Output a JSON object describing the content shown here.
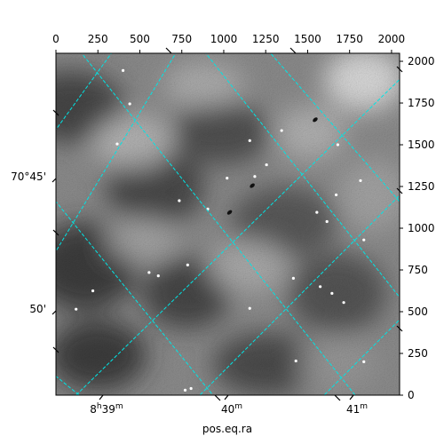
{
  "chart_data": {
    "type": "heatmap",
    "title": "",
    "xlabel": "pos.eq.ra",
    "ylabel": "",
    "pixel_x_axis": {
      "position": "top",
      "range": [
        0,
        2048
      ],
      "ticks": [
        0,
        250,
        500,
        750,
        1000,
        1250,
        1500,
        1750,
        2000
      ],
      "tick_labels": [
        "0",
        "250",
        "500",
        "750",
        "1000",
        "1250",
        "1500",
        "1750",
        "2000"
      ]
    },
    "pixel_y_axis": {
      "position": "right",
      "range": [
        0,
        2048
      ],
      "ticks": [
        0,
        250,
        500,
        750,
        1000,
        1250,
        1500,
        1750,
        2000
      ],
      "tick_labels": [
        "0",
        "250",
        "500",
        "750",
        "1000",
        "1250",
        "1500",
        "1750",
        "2000"
      ]
    },
    "ra_axis": {
      "position": "bottom",
      "tick_labels": [
        {
          "h": "8",
          "m": "39",
          "text": "8h39m"
        },
        {
          "h": "",
          "m": "40",
          "text": "40m"
        },
        {
          "h": "",
          "m": "41",
          "text": "41m"
        }
      ]
    },
    "dec_axis": {
      "position": "left",
      "tick_labels": [
        "70°45'",
        "50'"
      ]
    },
    "grid": true,
    "grid_style": "dashed",
    "grid_color": "#00e5e5",
    "colormap": "gray",
    "stars": [
      {
        "x": 1345,
        "y": 1585
      },
      {
        "x": 1020,
        "y": 1300
      },
      {
        "x": 1185,
        "y": 1310
      },
      {
        "x": 735,
        "y": 1165
      },
      {
        "x": 905,
        "y": 1115
      },
      {
        "x": 1670,
        "y": 1200
      },
      {
        "x": 1815,
        "y": 1285
      },
      {
        "x": 1255,
        "y": 1380
      },
      {
        "x": 1680,
        "y": 1500
      },
      {
        "x": 400,
        "y": 1945
      },
      {
        "x": 440,
        "y": 1745
      },
      {
        "x": 555,
        "y": 735
      },
      {
        "x": 610,
        "y": 715
      },
      {
        "x": 785,
        "y": 780
      },
      {
        "x": 220,
        "y": 625
      },
      {
        "x": 1415,
        "y": 700
      },
      {
        "x": 1575,
        "y": 650
      },
      {
        "x": 1645,
        "y": 610
      },
      {
        "x": 1715,
        "y": 555
      },
      {
        "x": 1155,
        "y": 520
      },
      {
        "x": 1835,
        "y": 930
      },
      {
        "x": 1835,
        "y": 200
      },
      {
        "x": 1430,
        "y": 205
      },
      {
        "x": 805,
        "y": 40
      },
      {
        "x": 770,
        "y": 30
      },
      {
        "x": 1615,
        "y": 1040
      },
      {
        "x": 1555,
        "y": 1095
      },
      {
        "x": 120,
        "y": 515
      },
      {
        "x": 365,
        "y": 1505
      },
      {
        "x": 1155,
        "y": 1525
      }
    ],
    "dark_spots": [
      {
        "x": 1035,
        "y": 1095
      },
      {
        "x": 1170,
        "y": 1255
      },
      {
        "x": 1545,
        "y": 1650
      }
    ]
  }
}
